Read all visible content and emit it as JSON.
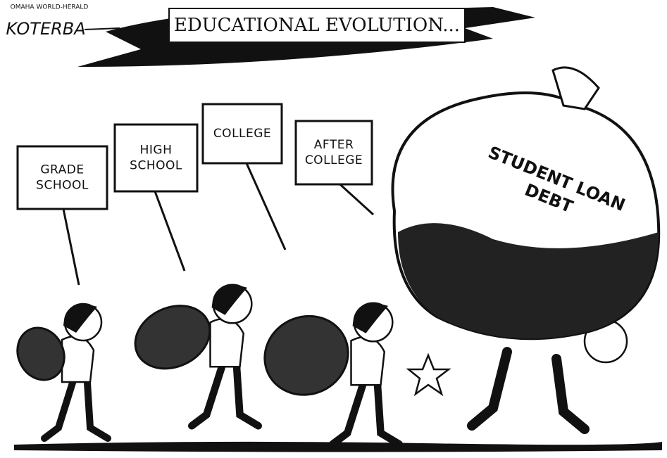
{
  "header": {
    "publication": "OMAHA WORLD-HERALD",
    "artist": "KOTERBA",
    "title": "EDUCATIONAL EVOLUTION..."
  },
  "signs": [
    {
      "lines": [
        "GRADE",
        "SCHOOL"
      ]
    },
    {
      "lines": [
        "HIGH",
        "SCHOOL"
      ]
    },
    {
      "lines": [
        "COLLEGE"
      ]
    },
    {
      "lines": [
        "AFTER",
        "COLLEGE"
      ]
    }
  ],
  "bag": {
    "lines": [
      "STUDENT LOAN",
      "DEBT"
    ]
  }
}
